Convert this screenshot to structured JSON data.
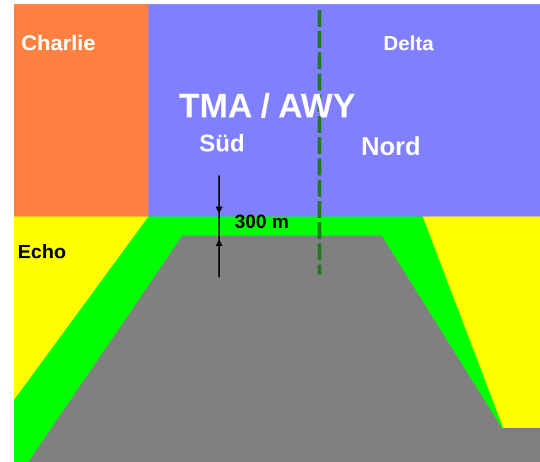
{
  "airspaces": {
    "charlie": {
      "label": "Charlie",
      "color": "#FF8040"
    },
    "delta": {
      "label": "Delta",
      "color": "#8080FF"
    },
    "echo": {
      "label": "Echo",
      "color": "#FFFF00"
    },
    "buffer": {
      "color": "#00FF00"
    },
    "ground": {
      "color": "#808080"
    }
  },
  "tma": {
    "title": "TMA / AWY",
    "south_label": "Süd",
    "north_label": "Nord"
  },
  "centerline": {
    "color": "#1E7B1E"
  },
  "separation": {
    "label": "300 m"
  }
}
